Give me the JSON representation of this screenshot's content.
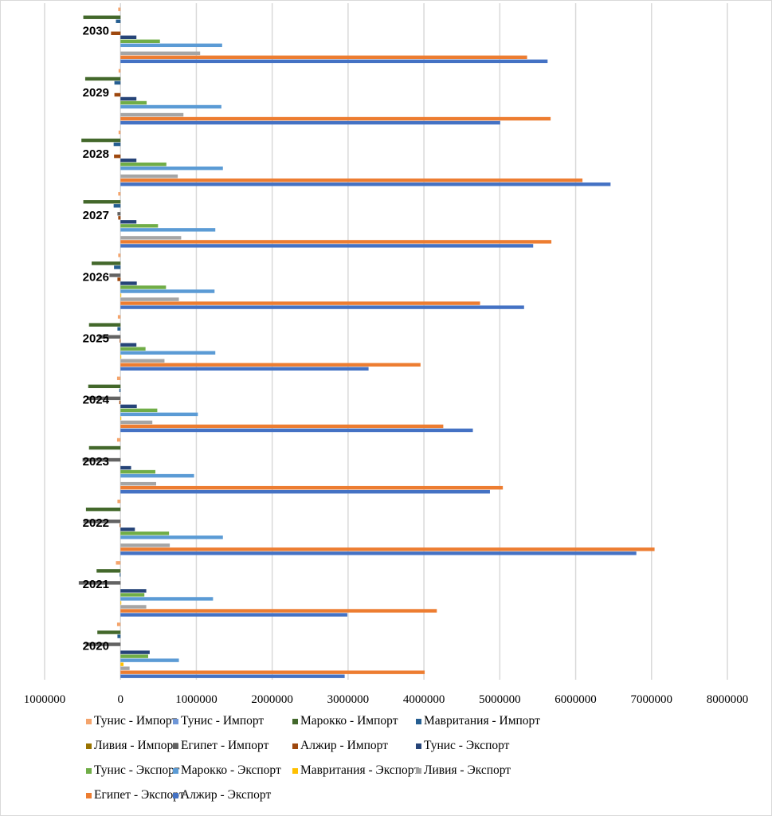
{
  "chart_data": {
    "type": "bar",
    "orientation": "horizontal",
    "title": "",
    "xlabel": "",
    "ylabel": "",
    "xlim": [
      -1000000,
      8000000
    ],
    "x_ticks": [
      -1000000,
      0,
      1000000,
      2000000,
      3000000,
      4000000,
      5000000,
      6000000,
      7000000,
      8000000
    ],
    "x_tick_labels": [
      "1000000",
      "0",
      "1000000",
      "2000000",
      "3000000",
      "4000000",
      "5000000",
      "6000000",
      "7000000",
      "8000000"
    ],
    "grid": "vertical",
    "legend_position": "bottom",
    "categories": [
      "2020",
      "2021",
      "2022",
      "2023",
      "2024",
      "2025",
      "2026",
      "2027",
      "2028",
      "2029",
      "2030"
    ],
    "series": [
      {
        "name": "Тунис - Импорт",
        "color": "#F4A46C",
        "values": [
          -45000,
          -60000,
          -40000,
          -45000,
          -45000,
          -35000,
          -30000,
          -30000,
          -25000,
          -25000,
          -30000
        ]
      },
      {
        "name": "Тунис - Импорт",
        "color": "#6F97D8",
        "values": [
          0,
          0,
          0,
          0,
          0,
          0,
          0,
          0,
          0,
          0,
          0
        ]
      },
      {
        "name": "Марокко - Импорт",
        "color": "#43682B",
        "values": [
          -305000,
          -315000,
          -455000,
          -415000,
          -425000,
          -415000,
          -380000,
          -490000,
          -515000,
          -465000,
          -490000
        ]
      },
      {
        "name": "Мавритания - Импорт",
        "color": "#255E91",
        "values": [
          -40000,
          -10000,
          0,
          0,
          -15000,
          -40000,
          -85000,
          -90000,
          -90000,
          -80000,
          -60000
        ]
      },
      {
        "name": "Ливия - Импорт",
        "color": "#997300",
        "values": [
          0,
          0,
          0,
          0,
          0,
          0,
          0,
          0,
          0,
          0,
          0
        ]
      },
      {
        "name": "Египет - Импорт",
        "color": "#636363",
        "values": [
          -460000,
          -550000,
          -490000,
          -500000,
          -440000,
          -290000,
          -145000,
          -40000,
          0,
          0,
          0
        ]
      },
      {
        "name": "Алжир - Импорт",
        "color": "#9E480E",
        "values": [
          0,
          0,
          -10000,
          0,
          -15000,
          -10000,
          -40000,
          -30000,
          -85000,
          -80000,
          -125000
        ]
      },
      {
        "name": "Тунис - Экспорт",
        "color": "#264478",
        "values": [
          385000,
          340000,
          190000,
          140000,
          215000,
          210000,
          215000,
          210000,
          210000,
          210000,
          210000
        ]
      },
      {
        "name": "Тунис - Экспорт",
        "color": "#70AD47",
        "values": [
          365000,
          315000,
          640000,
          460000,
          485000,
          330000,
          600000,
          495000,
          605000,
          345000,
          520000
        ]
      },
      {
        "name": "Марокко - Экспорт",
        "color": "#5B9BD5",
        "values": [
          770000,
          1220000,
          1350000,
          970000,
          1020000,
          1250000,
          1240000,
          1250000,
          1350000,
          1330000,
          1340000
        ]
      },
      {
        "name": "Мавритания - Экспорт",
        "color": "#FFC000",
        "values": [
          40000,
          10000,
          0,
          0,
          10000,
          10000,
          10000,
          0,
          0,
          0,
          0
        ]
      },
      {
        "name": "Ливия - Экспорт",
        "color": "#A5A5A5",
        "values": [
          120000,
          340000,
          650000,
          470000,
          420000,
          580000,
          770000,
          800000,
          755000,
          830000,
          1050000
        ]
      },
      {
        "name": "Египет - Экспорт",
        "color": "#ED7D31",
        "values": [
          4010000,
          4170000,
          7040000,
          5040000,
          4255000,
          3955000,
          4740000,
          5680000,
          6090000,
          5670000,
          5360000
        ]
      },
      {
        "name": "Алжир - Экспорт",
        "color": "#4472C4",
        "values": [
          2955000,
          2990000,
          6800000,
          4870000,
          4645000,
          3270000,
          5320000,
          5440000,
          6460000,
          5005000,
          5630000
        ]
      }
    ]
  }
}
